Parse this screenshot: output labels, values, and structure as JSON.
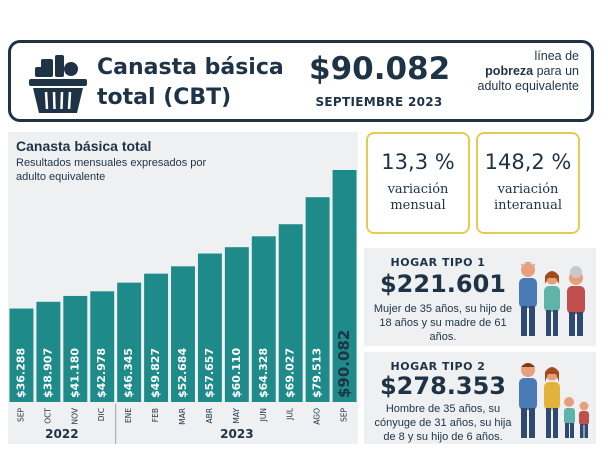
{
  "header": {
    "title": "Canasta básica total (CBT)",
    "amount": "$90.082",
    "date": "SEPTIEMBRE 2023",
    "note_pre": "línea de",
    "note_bold": "pobreza",
    "note_post": "para un adulto equivalente"
  },
  "chart_data": {
    "type": "bar",
    "title": "Canasta básica total",
    "subtitle": "Resultados mensuales expresados por adulto equivalente",
    "categories": [
      "SEP",
      "OCT",
      "NOV",
      "DIC",
      "ENE",
      "FEB",
      "MAR",
      "ABR",
      "MAY",
      "JUN",
      "JUL",
      "AGO",
      "SEP"
    ],
    "values": [
      36288,
      38907,
      41180,
      42978,
      46345,
      49827,
      52684,
      57657,
      60110,
      64328,
      69027,
      79513,
      90082
    ],
    "value_labels": [
      "$36.288",
      "$38.907",
      "$41.180",
      "$42.978",
      "$46.345",
      "$49.827",
      "$52.684",
      "$57.657",
      "$60.110",
      "$64.328",
      "$69.027",
      "$79.513",
      "$90.082"
    ],
    "years": [
      {
        "label": "2022",
        "from": 0,
        "to": 3
      },
      {
        "label": "2023",
        "from": 4,
        "to": 12
      }
    ],
    "ylim": [
      0,
      90082
    ],
    "bar_color": "#1f8a8a"
  },
  "variations": [
    {
      "value": "13,3 %",
      "label": "variación mensual"
    },
    {
      "value": "148,2 %",
      "label": "variación interanual"
    }
  ],
  "hogares": [
    {
      "title": "HOGAR TIPO 1",
      "amount": "$221.601",
      "desc": "Mujer de 35 años, su hijo de 18 años y su madre de 61 años."
    },
    {
      "title": "HOGAR TIPO 2",
      "amount": "$278.353",
      "desc": "Hombre de 35 años, su cónyuge de 31 años, su hija de 8 y su hijo de 6 años."
    }
  ],
  "colors": {
    "navy": "#1f3347",
    "teal": "#1f8a8a",
    "gold": "#e4cc54",
    "panel": "#eef0f1"
  }
}
